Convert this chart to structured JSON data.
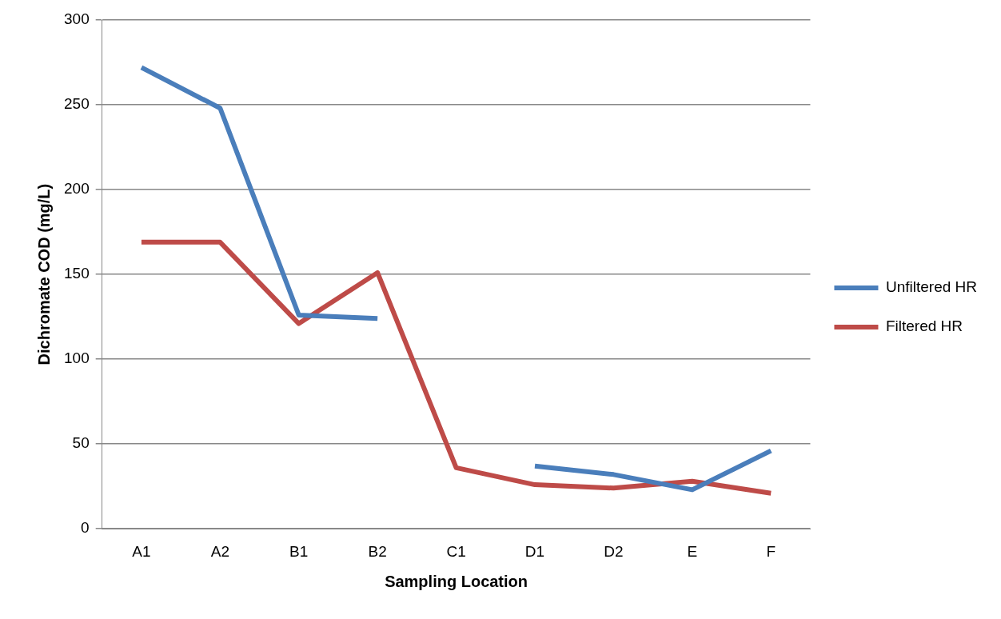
{
  "chart_data": {
    "type": "line",
    "xlabel": "Sampling Location",
    "ylabel": "Dichromate COD (mg/L)",
    "categories": [
      "A1",
      "A2",
      "B1",
      "B2",
      "C1",
      "D1",
      "D2",
      "E",
      "F"
    ],
    "series": [
      {
        "name": "Unfiltered HR",
        "color": "#4a7ebb",
        "values": [
          272,
          248,
          126,
          124,
          null,
          37,
          32,
          23,
          46
        ]
      },
      {
        "name": "Filtered HR",
        "color": "#be4b48",
        "values": [
          169,
          169,
          121,
          151,
          36,
          26,
          24,
          28,
          21
        ]
      }
    ],
    "ylim": [
      0,
      300
    ],
    "yticks": [
      0,
      50,
      100,
      150,
      200,
      250,
      300
    ],
    "grid": "y",
    "legend": "right",
    "marker": "none",
    "line_style": "solid"
  }
}
